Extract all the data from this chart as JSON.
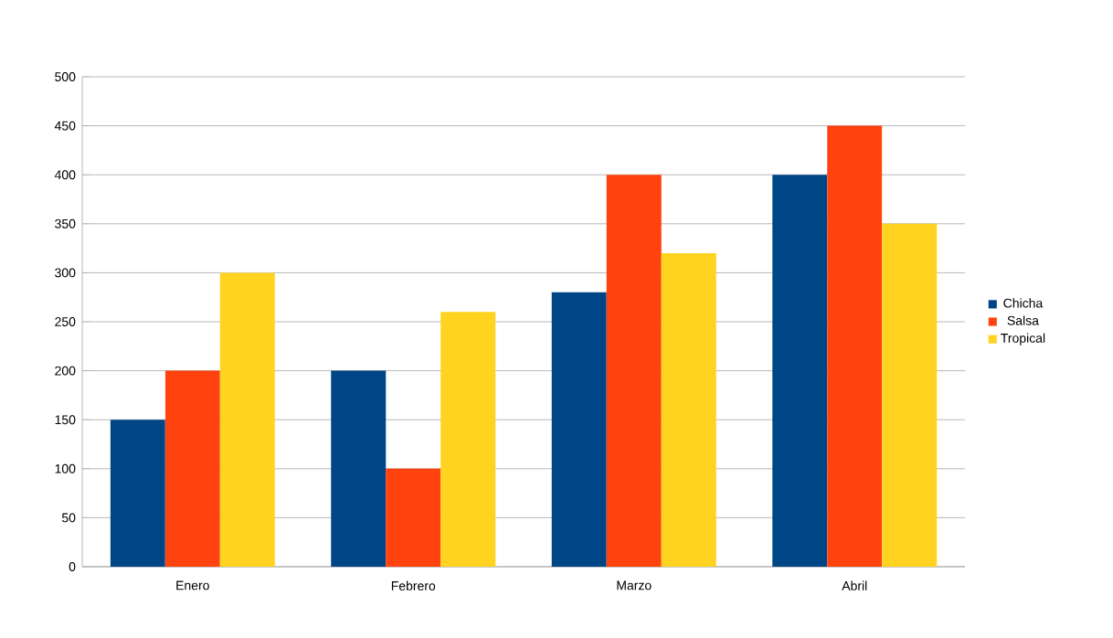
{
  "chart_data": {
    "type": "bar",
    "categories": [
      "Enero",
      "Febrero",
      "Marzo",
      "Abril"
    ],
    "series": [
      {
        "name": "Chicha",
        "color": "#004586",
        "values": [
          150,
          200,
          280,
          400
        ]
      },
      {
        "name": "Salsa",
        "color": "#ff420e",
        "values": [
          200,
          100,
          400,
          450
        ]
      },
      {
        "name": "Tropical",
        "color": "#ffd320",
        "values": [
          300,
          260,
          320,
          350
        ]
      }
    ],
    "ylim": [
      0,
      500
    ],
    "yticks": [
      0,
      50,
      100,
      150,
      200,
      250,
      300,
      350,
      400,
      450,
      500
    ],
    "grid": "y",
    "legend": "right"
  }
}
